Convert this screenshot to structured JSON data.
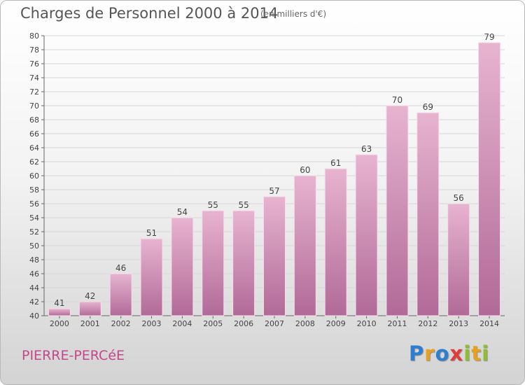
{
  "title": "Charges de Personnel 2000 à 2014",
  "subtitle": "(en milliers d'€)",
  "commune": "PIERRE-PERCéE",
  "logo": {
    "letters": [
      "P",
      "r",
      "o",
      "x",
      "i",
      "t",
      "i"
    ],
    "colors": [
      "#2f7fd0",
      "#e8a020",
      "#2f7fd0",
      "#e23b3b",
      "#8fbf2f",
      "#e8a020",
      "#8fbf2f"
    ]
  },
  "colors": {
    "bar_light": "#e7b4d0",
    "bar_dark": "#b16a97",
    "commune": "#c2488b"
  },
  "chart_data": {
    "type": "bar",
    "title": "Charges de Personnel 2000 à 2014",
    "subtitle": "(en milliers d'€)",
    "categories": [
      "2000",
      "2001",
      "2002",
      "2003",
      "2004",
      "2005",
      "2006",
      "2007",
      "2008",
      "2009",
      "2010",
      "2011",
      "2012",
      "2013",
      "2014"
    ],
    "values": [
      41,
      42,
      46,
      51,
      54,
      55,
      55,
      57,
      60,
      61,
      63,
      70,
      69,
      56,
      79
    ],
    "ylim": [
      40,
      80
    ],
    "yticks": [
      40,
      42,
      44,
      46,
      48,
      50,
      52,
      54,
      56,
      58,
      60,
      62,
      64,
      66,
      68,
      70,
      72,
      74,
      76,
      78,
      80
    ],
    "grid": true,
    "data_labels": true
  }
}
